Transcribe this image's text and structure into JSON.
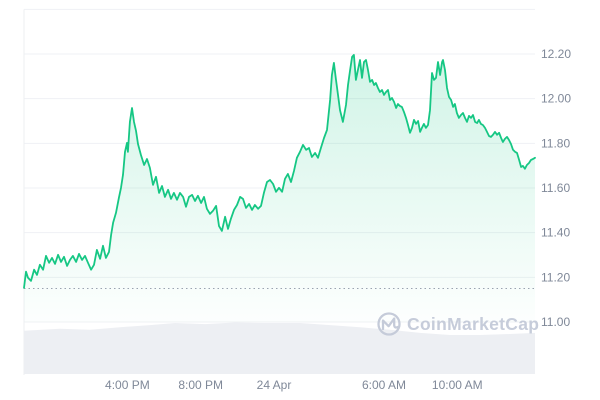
{
  "watermark": {
    "text": "CoinMarketCap"
  },
  "colors": {
    "line": "#16c784",
    "grid": "#eff1f4",
    "axis_border": "#edeff2",
    "axis_text": "#7f8898",
    "volume_fill": "#edeff3",
    "ref_line": "#9aa3b0",
    "watermark": "#c6ccda",
    "background": "#ffffff"
  },
  "chart_data": {
    "type": "area",
    "series_name": "price",
    "title": "",
    "legend": [],
    "grid": "horizontal-only",
    "x_axis": {
      "unit_note": "hours relative to 24 Apr 00:00",
      "domain": [
        -13.64,
        14.24
      ],
      "ticks": [
        {
          "t": -8,
          "label": "4:00 PM"
        },
        {
          "t": -4,
          "label": "8:00 PM"
        },
        {
          "t": 0,
          "label": "24 Apr"
        },
        {
          "t": 6,
          "label": "6:00 AM"
        },
        {
          "t": 10,
          "label": "10:00 AM"
        }
      ]
    },
    "y_axis": {
      "domain": [
        11.0,
        12.4
      ],
      "gridline_values": [
        12.4,
        12.2,
        12.0,
        11.8,
        11.6,
        11.4,
        11.2,
        11.0
      ],
      "tick_labels": [
        {
          "value": 12.2,
          "label": "12.20"
        },
        {
          "value": 12.0,
          "label": "12.00"
        },
        {
          "value": 11.8,
          "label": "11.80"
        },
        {
          "value": 11.6,
          "label": "11.60"
        },
        {
          "value": 11.4,
          "label": "11.40"
        },
        {
          "value": 11.2,
          "label": "11.20"
        },
        {
          "value": 11.0,
          "label": "11.00"
        }
      ],
      "side": "right"
    },
    "reference_line": {
      "price": 11.15,
      "style": "dotted"
    },
    "points": [
      [
        -13.64,
        11.153
      ],
      [
        -13.53,
        11.225
      ],
      [
        -13.42,
        11.198
      ],
      [
        -13.26,
        11.184
      ],
      [
        -13.09,
        11.234
      ],
      [
        -12.93,
        11.211
      ],
      [
        -12.77,
        11.256
      ],
      [
        -12.6,
        11.234
      ],
      [
        -12.44,
        11.296
      ],
      [
        -12.27,
        11.265
      ],
      [
        -12.11,
        11.287
      ],
      [
        -11.95,
        11.26
      ],
      [
        -11.78,
        11.301
      ],
      [
        -11.62,
        11.269
      ],
      [
        -11.46,
        11.292
      ],
      [
        -11.29,
        11.251
      ],
      [
        -11.13,
        11.278
      ],
      [
        -10.97,
        11.296
      ],
      [
        -10.8,
        11.269
      ],
      [
        -10.64,
        11.305
      ],
      [
        -10.47,
        11.278
      ],
      [
        -10.31,
        11.296
      ],
      [
        -10.15,
        11.265
      ],
      [
        -9.98,
        11.234
      ],
      [
        -9.82,
        11.256
      ],
      [
        -9.66,
        11.323
      ],
      [
        -9.49,
        11.283
      ],
      [
        -9.33,
        11.341
      ],
      [
        -9.17,
        11.287
      ],
      [
        -9.0,
        11.314
      ],
      [
        -8.89,
        11.39
      ],
      [
        -8.78,
        11.444
      ],
      [
        -8.62,
        11.489
      ],
      [
        -8.46,
        11.556
      ],
      [
        -8.35,
        11.601
      ],
      [
        -8.24,
        11.659
      ],
      [
        -8.13,
        11.762
      ],
      [
        -8.02,
        11.802
      ],
      [
        -7.97,
        11.762
      ],
      [
        -7.86,
        11.896
      ],
      [
        -7.75,
        11.958
      ],
      [
        -7.64,
        11.896
      ],
      [
        -7.53,
        11.856
      ],
      [
        -7.42,
        11.797
      ],
      [
        -7.26,
        11.748
      ],
      [
        -7.09,
        11.703
      ],
      [
        -6.93,
        11.73
      ],
      [
        -6.77,
        11.69
      ],
      [
        -6.6,
        11.614
      ],
      [
        -6.44,
        11.65
      ],
      [
        -6.27,
        11.578
      ],
      [
        -6.11,
        11.609
      ],
      [
        -5.95,
        11.56
      ],
      [
        -5.78,
        11.592
      ],
      [
        -5.62,
        11.551
      ],
      [
        -5.46,
        11.578
      ],
      [
        -5.29,
        11.547
      ],
      [
        -5.13,
        11.578
      ],
      [
        -4.96,
        11.56
      ],
      [
        -4.8,
        11.516
      ],
      [
        -4.64,
        11.56
      ],
      [
        -4.47,
        11.569
      ],
      [
        -4.31,
        11.542
      ],
      [
        -4.15,
        11.565
      ],
      [
        -3.98,
        11.533
      ],
      [
        -3.82,
        11.56
      ],
      [
        -3.66,
        11.507
      ],
      [
        -3.49,
        11.484
      ],
      [
        -3.33,
        11.498
      ],
      [
        -3.16,
        11.52
      ],
      [
        -3.0,
        11.43
      ],
      [
        -2.84,
        11.408
      ],
      [
        -2.67,
        11.471
      ],
      [
        -2.51,
        11.417
      ],
      [
        -2.35,
        11.462
      ],
      [
        -2.18,
        11.502
      ],
      [
        -2.02,
        11.524
      ],
      [
        -1.85,
        11.56
      ],
      [
        -1.69,
        11.551
      ],
      [
        -1.53,
        11.511
      ],
      [
        -1.36,
        11.529
      ],
      [
        -1.2,
        11.502
      ],
      [
        -1.04,
        11.524
      ],
      [
        -0.87,
        11.507
      ],
      [
        -0.71,
        11.52
      ],
      [
        -0.55,
        11.578
      ],
      [
        -0.38,
        11.627
      ],
      [
        -0.22,
        11.636
      ],
      [
        -0.05,
        11.618
      ],
      [
        0.11,
        11.583
      ],
      [
        0.27,
        11.601
      ],
      [
        0.44,
        11.583
      ],
      [
        0.6,
        11.641
      ],
      [
        0.76,
        11.663
      ],
      [
        0.93,
        11.627
      ],
      [
        1.09,
        11.677
      ],
      [
        1.25,
        11.735
      ],
      [
        1.42,
        11.762
      ],
      [
        1.58,
        11.793
      ],
      [
        1.75,
        11.771
      ],
      [
        1.91,
        11.779
      ],
      [
        2.07,
        11.739
      ],
      [
        2.24,
        11.757
      ],
      [
        2.4,
        11.735
      ],
      [
        2.56,
        11.779
      ],
      [
        2.73,
        11.824
      ],
      [
        2.89,
        11.86
      ],
      [
        3.06,
        11.994
      ],
      [
        3.16,
        12.106
      ],
      [
        3.27,
        12.16
      ],
      [
        3.38,
        12.084
      ],
      [
        3.49,
        12.017
      ],
      [
        3.6,
        11.949
      ],
      [
        3.76,
        11.896
      ],
      [
        3.93,
        11.972
      ],
      [
        4.04,
        12.061
      ],
      [
        4.15,
        12.128
      ],
      [
        4.26,
        12.187
      ],
      [
        4.36,
        12.196
      ],
      [
        4.47,
        12.084
      ],
      [
        4.58,
        12.128
      ],
      [
        4.69,
        12.173
      ],
      [
        4.8,
        12.093
      ],
      [
        4.91,
        12.164
      ],
      [
        5.02,
        12.173
      ],
      [
        5.13,
        12.128
      ],
      [
        5.24,
        12.075
      ],
      [
        5.35,
        12.084
      ],
      [
        5.46,
        12.061
      ],
      [
        5.56,
        12.07
      ],
      [
        5.67,
        12.048
      ],
      [
        5.78,
        12.03
      ],
      [
        5.89,
        12.039
      ],
      [
        6.0,
        12.017
      ],
      [
        6.11,
        12.03
      ],
      [
        6.22,
        12.039
      ],
      [
        6.33,
        11.994
      ],
      [
        6.44,
        12.003
      ],
      [
        6.55,
        11.985
      ],
      [
        6.66,
        11.958
      ],
      [
        6.76,
        11.976
      ],
      [
        6.87,
        11.967
      ],
      [
        6.98,
        11.963
      ],
      [
        7.09,
        11.94
      ],
      [
        7.2,
        11.914
      ],
      [
        7.31,
        11.882
      ],
      [
        7.42,
        11.847
      ],
      [
        7.53,
        11.869
      ],
      [
        7.64,
        11.905
      ],
      [
        7.75,
        11.887
      ],
      [
        7.86,
        11.9
      ],
      [
        7.97,
        11.851
      ],
      [
        8.07,
        11.869
      ],
      [
        8.18,
        11.887
      ],
      [
        8.29,
        11.869
      ],
      [
        8.4,
        11.882
      ],
      [
        8.51,
        11.949
      ],
      [
        8.62,
        12.115
      ],
      [
        8.73,
        12.084
      ],
      [
        8.84,
        12.093
      ],
      [
        8.95,
        12.164
      ],
      [
        9.06,
        12.106
      ],
      [
        9.17,
        12.164
      ],
      [
        9.22,
        12.173
      ],
      [
        9.33,
        12.128
      ],
      [
        9.44,
        12.048
      ],
      [
        9.55,
        12.008
      ],
      [
        9.66,
        11.994
      ],
      [
        9.77,
        11.963
      ],
      [
        9.87,
        11.976
      ],
      [
        9.98,
        11.936
      ],
      [
        10.09,
        11.914
      ],
      [
        10.2,
        11.927
      ],
      [
        10.31,
        11.936
      ],
      [
        10.42,
        11.914
      ],
      [
        10.53,
        11.896
      ],
      [
        10.64,
        11.923
      ],
      [
        10.75,
        11.914
      ],
      [
        10.86,
        11.927
      ],
      [
        10.97,
        11.896
      ],
      [
        11.08,
        11.891
      ],
      [
        11.18,
        11.905
      ],
      [
        11.29,
        11.887
      ],
      [
        11.4,
        11.882
      ],
      [
        11.51,
        11.869
      ],
      [
        11.62,
        11.851
      ],
      [
        11.73,
        11.833
      ],
      [
        11.84,
        11.829
      ],
      [
        11.95,
        11.838
      ],
      [
        12.06,
        11.851
      ],
      [
        12.17,
        11.838
      ],
      [
        12.28,
        11.847
      ],
      [
        12.39,
        11.824
      ],
      [
        12.49,
        11.806
      ],
      [
        12.6,
        11.82
      ],
      [
        12.71,
        11.829
      ],
      [
        12.82,
        11.815
      ],
      [
        12.93,
        11.797
      ],
      [
        13.04,
        11.771
      ],
      [
        13.15,
        11.762
      ],
      [
        13.26,
        11.757
      ],
      [
        13.37,
        11.726
      ],
      [
        13.48,
        11.694
      ],
      [
        13.58,
        11.699
      ],
      [
        13.69,
        11.686
      ],
      [
        13.8,
        11.703
      ],
      [
        13.91,
        11.712
      ],
      [
        14.02,
        11.726
      ],
      [
        14.13,
        11.73
      ],
      [
        14.24,
        11.735
      ]
    ],
    "volume_profile": {
      "note": "normalized height (0-1) of gray volume silhouette along time axis",
      "points": [
        [
          -13.64,
          0.83
        ],
        [
          -11.68,
          0.87
        ],
        [
          -10.04,
          0.85
        ],
        [
          -8.4,
          0.9
        ],
        [
          -6.77,
          0.94
        ],
        [
          -5.4,
          0.98
        ],
        [
          -3.76,
          0.96
        ],
        [
          -2.13,
          0.99
        ],
        [
          -0.49,
          0.98
        ],
        [
          1.42,
          0.98
        ],
        [
          3.06,
          0.94
        ],
        [
          4.69,
          0.9
        ],
        [
          6.33,
          0.85
        ],
        [
          7.97,
          0.79
        ],
        [
          9.6,
          0.75
        ],
        [
          11.24,
          0.75
        ],
        [
          12.88,
          0.77
        ],
        [
          14.24,
          0.79
        ]
      ]
    }
  }
}
